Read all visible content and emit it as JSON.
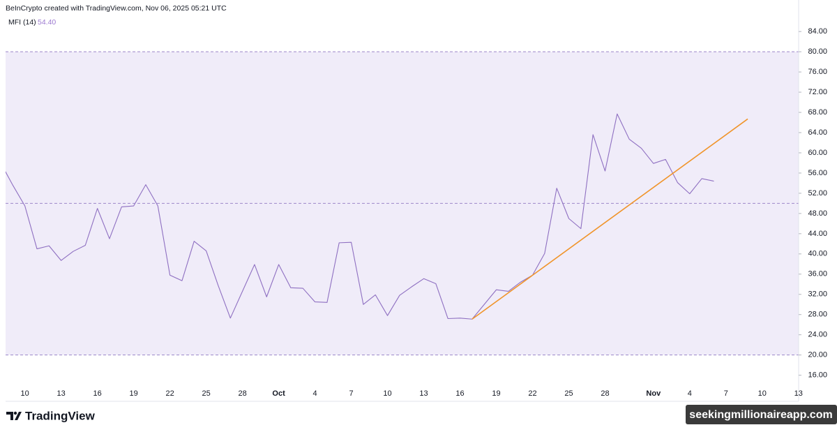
{
  "header": {
    "credit": "BeInCrypto created with TradingView.com, Nov 06, 2025 05:21 UTC",
    "brand": "TradingView",
    "watermark": "seekingmillionaireapp.com"
  },
  "chart_data": {
    "type": "line",
    "title": "MFI (14)",
    "last_value_label": "54.40",
    "color": "#8e6fc1",
    "categories": [
      null,
      null,
      "10",
      null,
      null,
      "13",
      null,
      null,
      "16",
      null,
      null,
      "19",
      null,
      null,
      "22",
      null,
      null,
      "25",
      null,
      null,
      "28",
      null,
      null,
      "Oct",
      null,
      null,
      "4",
      null,
      null,
      "7",
      null,
      null,
      "10",
      null,
      null,
      "13",
      null,
      null,
      "16",
      null,
      null,
      "19",
      null,
      null,
      "22",
      null,
      null,
      "25",
      null,
      null,
      "28",
      null,
      null,
      null,
      "Nov",
      null,
      null,
      "4",
      null,
      null,
      "7",
      null,
      null,
      "10",
      null,
      null,
      "13"
    ],
    "values": [
      58.0,
      53.6,
      49.5,
      41.0,
      41.6,
      38.7,
      40.5,
      41.7,
      49.0,
      43.0,
      49.3,
      49.5,
      53.7,
      49.5,
      35.8,
      34.7,
      42.5,
      40.6,
      33.7,
      27.3,
      32.6,
      37.9,
      31.5,
      37.9,
      33.3,
      33.2,
      30.5,
      30.4,
      42.2,
      42.3,
      30.0,
      31.9,
      27.8,
      31.8,
      33.5,
      35.1,
      34.1,
      27.2,
      27.3,
      27.1,
      30.0,
      32.9,
      32.6,
      34.4,
      35.8,
      40.1,
      53.0,
      47.0,
      45.0,
      63.6,
      56.4,
      67.7,
      62.7,
      60.9,
      57.9,
      58.7,
      54.1,
      51.9,
      54.9,
      54.4,
      null,
      null,
      null,
      null,
      null,
      null,
      null
    ],
    "ylim": [
      13.6,
      87.2
    ],
    "yticks": [
      {
        "value": 16,
        "label": "16.00"
      },
      {
        "value": 20,
        "label": "20.00"
      },
      {
        "value": 24,
        "label": "24.00"
      },
      {
        "value": 28,
        "label": "28.00"
      },
      {
        "value": 32,
        "label": "32.00"
      },
      {
        "value": 36,
        "label": "36.00"
      },
      {
        "value": 40,
        "label": "40.00"
      },
      {
        "value": 44,
        "label": "44.00"
      },
      {
        "value": 48,
        "label": "48.00"
      },
      {
        "value": 52,
        "label": "52.00"
      },
      {
        "value": 56,
        "label": "56.00"
      },
      {
        "value": 60,
        "label": "60.00"
      },
      {
        "value": 64,
        "label": "64.00"
      },
      {
        "value": 68,
        "label": "68.00"
      },
      {
        "value": 72,
        "label": "72.00"
      },
      {
        "value": 76,
        "label": "76.00"
      },
      {
        "value": 80,
        "label": "80.00"
      },
      {
        "value": 84,
        "label": "84.00"
      }
    ],
    "band": [
      20,
      80
    ],
    "band_color": "#f0ecf9",
    "levels": [
      80,
      50,
      20
    ],
    "level_color": "#9c86c9",
    "trendline": {
      "color": "#f0942a",
      "x": [
        39,
        61.8
      ],
      "values": [
        27.1,
        66.7
      ]
    }
  }
}
